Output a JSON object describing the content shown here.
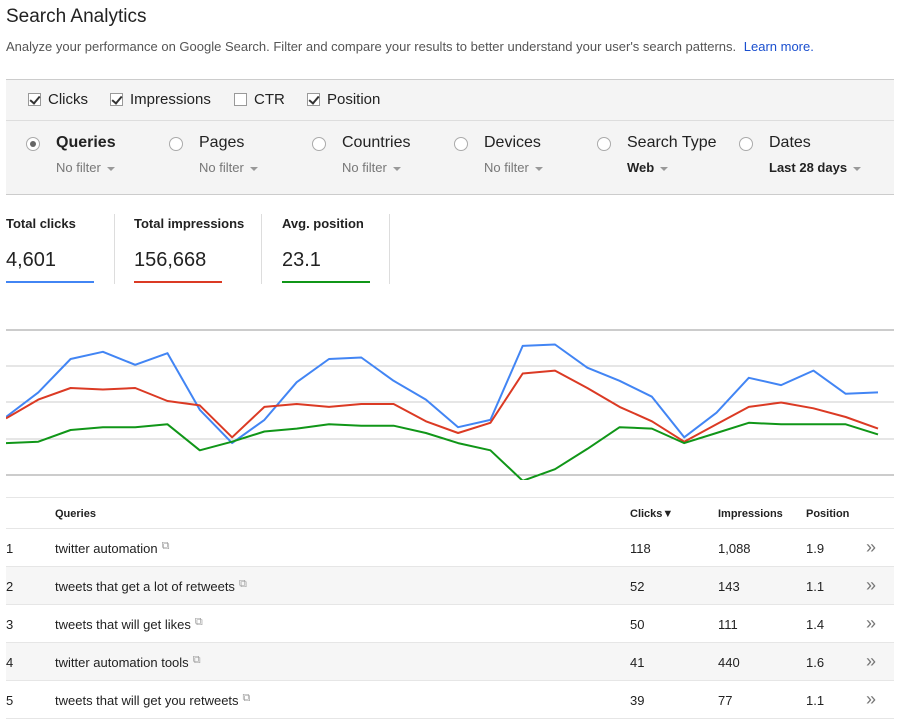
{
  "page": {
    "title": "Search Analytics",
    "subtitle": "Analyze your performance on Google Search. Filter and compare your results to better understand your user's search patterns.",
    "learn_more": "Learn more."
  },
  "metrics": [
    {
      "label": "Clicks",
      "checked": true
    },
    {
      "label": "Impressions",
      "checked": true
    },
    {
      "label": "CTR",
      "checked": false
    },
    {
      "label": "Position",
      "checked": true
    }
  ],
  "dimensions": [
    {
      "label": "Queries",
      "sub": "No filter",
      "selected": true
    },
    {
      "label": "Pages",
      "sub": "No filter",
      "selected": false
    },
    {
      "label": "Countries",
      "sub": "No filter",
      "selected": false
    },
    {
      "label": "Devices",
      "sub": "No filter",
      "selected": false
    },
    {
      "label": "Search Type",
      "sub": "Web",
      "selected": false
    },
    {
      "label": "Dates",
      "sub": "Last 28 days",
      "selected": false
    }
  ],
  "totals": [
    {
      "label": "Total clicks",
      "value": "4,601",
      "color": "#4285f4"
    },
    {
      "label": "Total impressions",
      "value": "156,668",
      "color": "#db3a24"
    },
    {
      "label": "Avg. position",
      "value": "23.1",
      "color": "#109618"
    }
  ],
  "chart_data": {
    "type": "line",
    "series": [
      {
        "name": "Clicks",
        "color": "#4285f4",
        "values": [
          0.4,
          0.57,
          0.8,
          0.85,
          0.76,
          0.84,
          0.45,
          0.22,
          0.38,
          0.64,
          0.8,
          0.81,
          0.65,
          0.52,
          0.33,
          0.38,
          0.89,
          0.9,
          0.74,
          0.65,
          0.54,
          0.26,
          0.43,
          0.67,
          0.62,
          0.72,
          0.56,
          0.57
        ]
      },
      {
        "name": "Impressions",
        "color": "#db3a24",
        "values": [
          0.39,
          0.52,
          0.6,
          0.59,
          0.6,
          0.51,
          0.48,
          0.26,
          0.47,
          0.49,
          0.47,
          0.49,
          0.49,
          0.37,
          0.29,
          0.36,
          0.7,
          0.72,
          0.6,
          0.47,
          0.37,
          0.23,
          0.35,
          0.47,
          0.5,
          0.46,
          0.4,
          0.32
        ]
      },
      {
        "name": "Position",
        "color": "#109618",
        "values": [
          0.22,
          0.23,
          0.31,
          0.33,
          0.33,
          0.35,
          0.17,
          0.23,
          0.3,
          0.32,
          0.35,
          0.34,
          0.34,
          0.29,
          0.22,
          0.17,
          -0.04,
          0.04,
          0.18,
          0.33,
          0.32,
          0.22,
          0.29,
          0.36,
          0.35,
          0.35,
          0.35,
          0.28
        ]
      }
    ]
  },
  "table": {
    "headers": {
      "num": "",
      "query": "Queries",
      "clicks": "Clicks▼",
      "impressions": "Impressions",
      "position": "Position"
    },
    "rows": [
      {
        "num": "1",
        "query": "twitter automation",
        "clicks": "118",
        "impressions": "1,088",
        "position": "1.9"
      },
      {
        "num": "2",
        "query": "tweets that get a lot of retweets",
        "clicks": "52",
        "impressions": "143",
        "position": "1.1"
      },
      {
        "num": "3",
        "query": "tweets that will get likes",
        "clicks": "50",
        "impressions": "111",
        "position": "1.4"
      },
      {
        "num": "4",
        "query": "twitter automation tools",
        "clicks": "41",
        "impressions": "440",
        "position": "1.6"
      },
      {
        "num": "5",
        "query": "tweets that will get you retweets",
        "clicks": "39",
        "impressions": "77",
        "position": "1.1"
      }
    ],
    "open_icon": "external-link-icon",
    "row_action_icon": "double-chevron-right-icon"
  }
}
